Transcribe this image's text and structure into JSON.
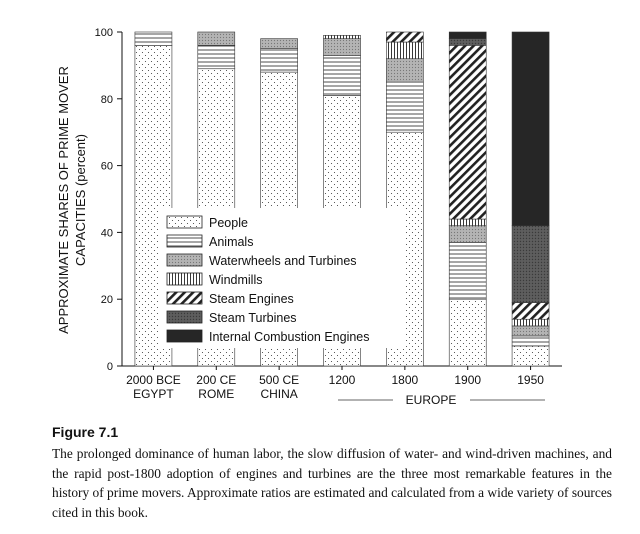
{
  "chart_data": {
    "type": "bar",
    "stacked": true,
    "ylabel": "APPROXIMATE SHARES OF PRIME MOVER CAPACITIES (percent)",
    "ylim": [
      0,
      100
    ],
    "yticks": [
      0,
      20,
      40,
      60,
      80,
      100
    ],
    "categories": [
      {
        "line1": "2000 BCE",
        "line2": "EGYPT"
      },
      {
        "line1": "200 CE",
        "line2": "ROME"
      },
      {
        "line1": "500 CE",
        "line2": "CHINA"
      },
      {
        "line1": "1200",
        "line2": ""
      },
      {
        "line1": "1800",
        "line2": ""
      },
      {
        "line1": "1900",
        "line2": ""
      },
      {
        "line1": "1950",
        "line2": ""
      }
    ],
    "group_label": "EUROPE",
    "series": [
      {
        "name": "People",
        "pattern": "dots",
        "values": [
          96,
          89,
          88,
          81,
          70,
          20,
          6
        ]
      },
      {
        "name": "Animals",
        "pattern": "hlines",
        "values": [
          4,
          7,
          7,
          12,
          15,
          17,
          3
        ]
      },
      {
        "name": "Waterwheels and Turbines",
        "pattern": "gray",
        "values": [
          0,
          4,
          3,
          5,
          7,
          5,
          3
        ]
      },
      {
        "name": "Windmills",
        "pattern": "vlines",
        "values": [
          0,
          0,
          0,
          1,
          5,
          2,
          2
        ]
      },
      {
        "name": "Steam Engines",
        "pattern": "diag",
        "values": [
          0,
          0,
          0,
          0,
          3,
          52,
          5
        ]
      },
      {
        "name": "Steam Turbines",
        "pattern": "darkgray",
        "values": [
          0,
          0,
          0,
          0,
          0,
          2,
          23
        ]
      },
      {
        "name": "Internal Combustion Engines",
        "pattern": "black",
        "values": [
          0,
          0,
          0,
          0,
          0,
          2,
          58
        ]
      }
    ],
    "grid": false,
    "legend_position": "bottom-left"
  },
  "caption": {
    "title": "Figure 7.1",
    "text": "The prolonged dominance of human labor, the slow diffusion of water- and wind-driven machines, and the rapid post-1800 adoption of engines and turbines are the three most remarkable features in the history of prime movers. Approximate ratios are estimated and calculated from a wide variety of sources cited in this book."
  }
}
